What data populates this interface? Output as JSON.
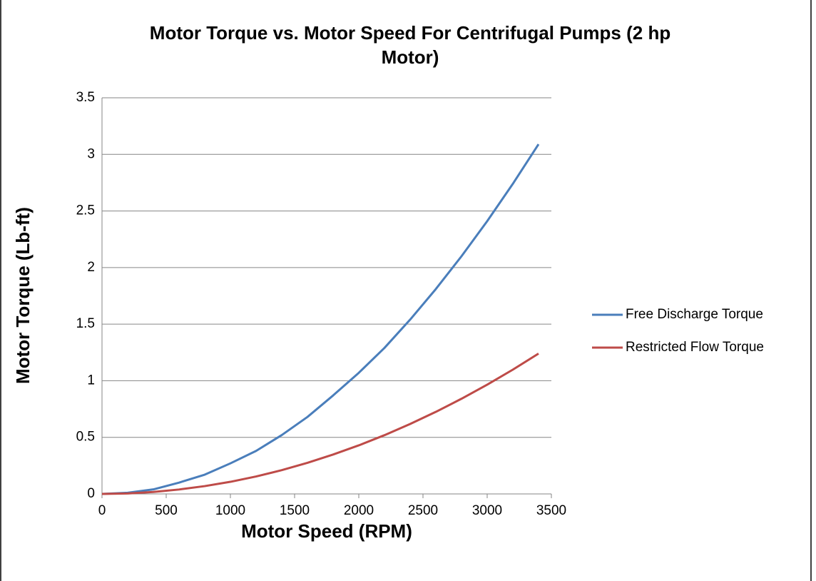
{
  "chart_data": {
    "type": "line",
    "title": "Motor Torque vs. Motor Speed For Centrifugal Pumps (2 hp Motor)",
    "x_label": "Motor Speed (RPM)",
    "y_label": "Motor Torque (Lb-ft)",
    "x": [
      0,
      200,
      400,
      600,
      800,
      1000,
      1200,
      1400,
      1600,
      1800,
      2000,
      2200,
      2400,
      2600,
      2800,
      3000,
      3200,
      3400
    ],
    "series": [
      {
        "name": "Free Discharge Torque",
        "color": "#4a7ebb",
        "values": [
          0,
          0.01,
          0.04,
          0.1,
          0.17,
          0.27,
          0.38,
          0.52,
          0.68,
          0.87,
          1.07,
          1.29,
          1.54,
          1.81,
          2.1,
          2.41,
          2.74,
          3.09
        ]
      },
      {
        "name": "Restricted Flow Torque",
        "color": "#be4b48",
        "values": [
          0,
          0.004,
          0.017,
          0.039,
          0.069,
          0.107,
          0.154,
          0.21,
          0.275,
          0.348,
          0.429,
          0.519,
          0.618,
          0.725,
          0.841,
          0.965,
          1.098,
          1.24
        ]
      }
    ],
    "xlim": [
      0,
      3500
    ],
    "xticks": [
      0,
      500,
      1000,
      1500,
      2000,
      2500,
      3000,
      3500
    ],
    "ylim": [
      0,
      3.5
    ],
    "yticks": [
      0,
      0.5,
      1,
      1.5,
      2,
      2.5,
      3,
      3.5
    ],
    "grid": true,
    "legend": "right"
  }
}
